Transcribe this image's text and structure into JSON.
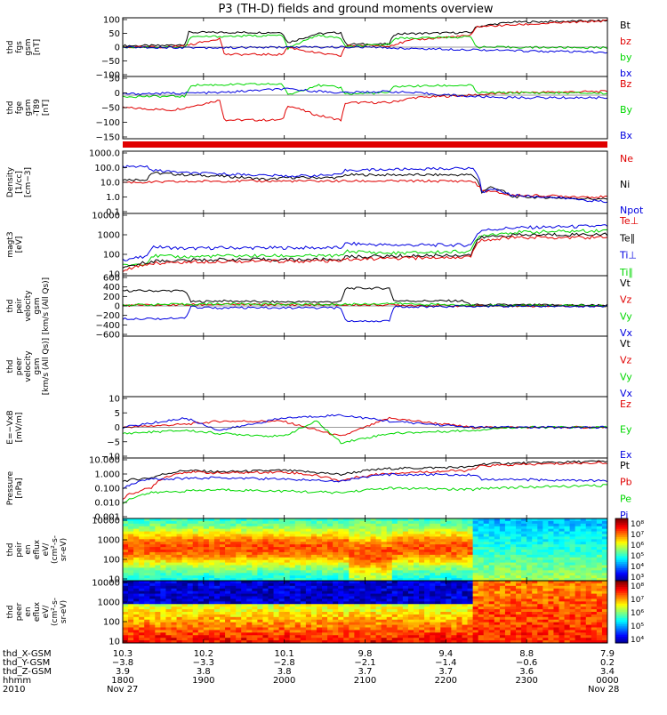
{
  "title": "P3 (TH-D) fields and ground moments overview",
  "colors": {
    "black": "#000000",
    "red": "#e00000",
    "green": "#00d800",
    "blue": "#0000e0",
    "frame": "#000000"
  },
  "chart_data": [
    {
      "type": "line",
      "ylabel": [
        "thd",
        "fgs",
        "gsm",
        "[nT]"
      ],
      "yticks": [
        "100",
        "50",
        "0",
        "−50",
        "−100"
      ],
      "ylim": [
        -100,
        100
      ],
      "legend": [
        {
          "name": "Bt",
          "color": "#000000"
        },
        {
          "name": "bz",
          "color": "#e00000"
        },
        {
          "name": "by",
          "color": "#00d800"
        },
        {
          "name": "bx",
          "color": "#0000e0"
        }
      ],
      "series": [
        {
          "name": "Bt",
          "color": "#000000",
          "x": [
            0,
            0.08,
            0.13,
            0.135,
            0.33,
            0.34,
            0.4,
            0.45,
            0.46,
            0.55,
            0.56,
            0.72,
            0.73,
            0.8,
            1.0
          ],
          "y": [
            5,
            5,
            10,
            50,
            50,
            15,
            45,
            50,
            10,
            10,
            45,
            50,
            70,
            85,
            90
          ]
        },
        {
          "name": "bz",
          "color": "#e00000",
          "x": [
            0,
            0.08,
            0.13,
            0.2,
            0.21,
            0.33,
            0.34,
            0.4,
            0.45,
            0.46,
            0.55,
            0.6,
            0.72,
            0.73,
            1.0
          ],
          "y": [
            0,
            0,
            5,
            30,
            -25,
            -25,
            0,
            -20,
            -30,
            5,
            5,
            25,
            40,
            70,
            90
          ]
        },
        {
          "name": "by",
          "color": "#00d800",
          "x": [
            0,
            0.13,
            0.14,
            0.33,
            0.34,
            0.4,
            0.45,
            0.46,
            0.55,
            0.56,
            0.72,
            0.73,
            1.0
          ],
          "y": [
            0,
            0,
            35,
            40,
            -5,
            40,
            30,
            0,
            10,
            30,
            35,
            0,
            -2
          ]
        },
        {
          "name": "bx",
          "color": "#0000e0",
          "x": [
            0,
            0.2,
            0.35,
            0.5,
            0.6,
            0.72,
            0.8,
            1.0
          ],
          "y": [
            0,
            -2,
            0,
            0,
            -5,
            -8,
            -12,
            -18
          ]
        }
      ]
    },
    {
      "type": "line",
      "ylabel": [
        "thd",
        "fge",
        "gsm",
        "-T89",
        "[nT]"
      ],
      "yticks": [
        "50",
        "0",
        "−50",
        "−100",
        "−150"
      ],
      "ylim": [
        -175,
        75
      ],
      "legend": [
        {
          "name": "Bz",
          "color": "#e00000"
        },
        {
          "name": "By",
          "color": "#00d800"
        },
        {
          "name": "Bx",
          "color": "#0000e0"
        }
      ],
      "series": [
        {
          "name": "Bz",
          "color": "#e00000",
          "x": [
            0,
            0.1,
            0.13,
            0.2,
            0.21,
            0.33,
            0.34,
            0.4,
            0.45,
            0.46,
            0.55,
            0.6,
            0.72,
            0.8,
            1.0
          ],
          "y": [
            -50,
            -60,
            -50,
            -20,
            -100,
            -100,
            -40,
            -80,
            -100,
            -30,
            -30,
            -10,
            0,
            10,
            15
          ]
        },
        {
          "name": "By",
          "color": "#00d800",
          "x": [
            0,
            0.13,
            0.14,
            0.33,
            0.34,
            0.4,
            0.45,
            0.46,
            0.55,
            0.56,
            0.72,
            0.73,
            1.0
          ],
          "y": [
            -5,
            -5,
            40,
            45,
            0,
            40,
            30,
            5,
            10,
            35,
            40,
            10,
            8
          ]
        },
        {
          "name": "Bx",
          "color": "#0000e0",
          "x": [
            0,
            0.2,
            0.33,
            0.45,
            0.55,
            0.72,
            0.8,
            1.0
          ],
          "y": [
            5,
            10,
            25,
            10,
            15,
            -5,
            -10,
            -10
          ]
        }
      ]
    },
    {
      "type": "line",
      "ylabel": [
        "Density",
        "[1/cc]",
        "[cm−3]"
      ],
      "yscale": "log",
      "yticks": [
        "1000.0",
        "100.0",
        "10.0",
        "1.0",
        "0.1"
      ],
      "ylim": [
        0.1,
        1000
      ],
      "legend": [
        {
          "name": "Ne",
          "color": "#e00000"
        },
        {
          "name": "Ni",
          "color": "#000000"
        },
        {
          "name": "Npot",
          "color": "#0000e0"
        }
      ],
      "series": [
        {
          "name": "Ni",
          "color": "#000000",
          "x": [
            0,
            0.05,
            0.06,
            0.13,
            0.2,
            0.3,
            0.34,
            0.45,
            0.46,
            0.72,
            0.74,
            0.76,
            0.8,
            1.0
          ],
          "y": [
            15,
            15,
            40,
            30,
            25,
            15,
            20,
            20,
            30,
            30,
            2,
            5,
            1.2,
            0.8
          ]
        },
        {
          "name": "Ne",
          "color": "#e00000",
          "x": [
            0,
            0.05,
            0.2,
            0.45,
            0.72,
            0.74,
            0.8,
            1.0
          ],
          "y": [
            10,
            10,
            12,
            12,
            12,
            3,
            1.5,
            1.1
          ]
        },
        {
          "name": "Npot",
          "color": "#0000e0",
          "x": [
            0,
            0.05,
            0.06,
            0.13,
            0.2,
            0.34,
            0.45,
            0.46,
            0.72,
            0.74,
            0.76,
            0.8,
            1.0
          ],
          "y": [
            100,
            100,
            60,
            40,
            35,
            25,
            30,
            60,
            80,
            2,
            4,
            1.5,
            0.5
          ]
        }
      ]
    },
    {
      "type": "line",
      "ylabel": [
        "magt3",
        "[eV]"
      ],
      "yscale": "log",
      "yticks": [
        "10000",
        "1000",
        "100",
        "10"
      ],
      "ylim": [
        10,
        10000
      ],
      "legend": [
        {
          "name": "Te⊥",
          "color": "#e00000"
        },
        {
          "name": "Te∥",
          "color": "#000000"
        },
        {
          "name": "Ti⊥",
          "color": "#0000e0"
        },
        {
          "name": "Ti∥",
          "color": "#00d800"
        }
      ],
      "series": [
        {
          "name": "Ti⊥",
          "color": "#0000e0",
          "x": [
            0,
            0.05,
            0.06,
            0.13,
            0.2,
            0.45,
            0.46,
            0.55,
            0.72,
            0.74,
            0.8,
            1.0
          ],
          "y": [
            60,
            80,
            250,
            200,
            220,
            220,
            350,
            300,
            300,
            1500,
            2000,
            2500
          ]
        },
        {
          "name": "Ti∥",
          "color": "#00d800",
          "x": [
            0,
            0.05,
            0.06,
            0.13,
            0.2,
            0.45,
            0.46,
            0.55,
            0.72,
            0.74,
            0.8,
            1.0
          ],
          "y": [
            30,
            40,
            90,
            80,
            90,
            90,
            150,
            120,
            150,
            900,
            1200,
            1500
          ]
        },
        {
          "name": "Te∥",
          "color": "#000000",
          "x": [
            0,
            0.06,
            0.2,
            0.45,
            0.46,
            0.72,
            0.74,
            0.8,
            1.0
          ],
          "y": [
            20,
            50,
            60,
            60,
            80,
            100,
            700,
            900,
            1000
          ]
        },
        {
          "name": "Te⊥",
          "color": "#e00000",
          "x": [
            0,
            0.06,
            0.2,
            0.45,
            0.46,
            0.72,
            0.74,
            0.8,
            1.0
          ],
          "y": [
            15,
            40,
            50,
            50,
            60,
            80,
            500,
            700,
            700
          ]
        }
      ]
    },
    {
      "type": "line",
      "ylabel": [
        "thd",
        "peir",
        "velocity",
        "gsm",
        "[km/s (All Qs)]"
      ],
      "yticks": [
        "600",
        "400",
        "200",
        "0",
        "−200",
        "−400",
        "−600"
      ],
      "ylim": [
        -600,
        600
      ],
      "legend": [
        {
          "name": "Vt",
          "color": "#000000"
        },
        {
          "name": "Vz",
          "color": "#e00000"
        },
        {
          "name": "Vy",
          "color": "#00d800"
        },
        {
          "name": "Vx",
          "color": "#0000e0"
        }
      ],
      "series": [
        {
          "name": "Vt",
          "color": "#000000",
          "x": [
            0,
            0.13,
            0.14,
            0.2,
            0.3,
            0.45,
            0.46,
            0.55,
            0.56,
            0.7,
            0.72,
            1.0
          ],
          "y": [
            300,
            300,
            80,
            100,
            80,
            80,
            350,
            350,
            100,
            100,
            20,
            15
          ]
        },
        {
          "name": "Vz",
          "color": "#e00000",
          "x": [
            0,
            0.2,
            0.45,
            0.55,
            0.72,
            1.0
          ],
          "y": [
            10,
            30,
            20,
            20,
            0,
            0
          ]
        },
        {
          "name": "Vy",
          "color": "#00d800",
          "x": [
            0,
            0.2,
            0.45,
            0.55,
            0.72,
            1.0
          ],
          "y": [
            20,
            40,
            30,
            50,
            10,
            5
          ]
        },
        {
          "name": "Vx",
          "color": "#0000e0",
          "x": [
            0,
            0.13,
            0.14,
            0.2,
            0.45,
            0.46,
            0.55,
            0.56,
            0.72,
            1.0
          ],
          "y": [
            -250,
            -250,
            -20,
            -40,
            -40,
            -300,
            -300,
            -20,
            -5,
            -5
          ]
        }
      ]
    },
    {
      "type": "line",
      "ylabel": [
        "thd",
        "peer",
        "velocity",
        "gsm",
        "[km/s (All Qs)]"
      ],
      "yticks": [],
      "legend": [
        {
          "name": "Vt",
          "color": "#000000"
        },
        {
          "name": "Vz",
          "color": "#e00000"
        },
        {
          "name": "Vy",
          "color": "#00d800"
        },
        {
          "name": "Vx",
          "color": "#0000e0"
        }
      ],
      "series": []
    },
    {
      "type": "line",
      "ylabel": [
        "E=−VxB",
        "[mV/m]"
      ],
      "yticks": [
        "10",
        "5",
        "0",
        "−5",
        "−10"
      ],
      "ylim": [
        -10,
        10
      ],
      "legend": [
        {
          "name": "Ez",
          "color": "#e00000"
        },
        {
          "name": "Ey",
          "color": "#00d800"
        },
        {
          "name": "Ex",
          "color": "#0000e0"
        }
      ],
      "series": [
        {
          "name": "Ez",
          "color": "#e00000",
          "x": [
            0,
            0.13,
            0.2,
            0.33,
            0.45,
            0.55,
            0.72,
            0.8,
            1.0
          ],
          "y": [
            0,
            1,
            2,
            2,
            -3,
            3,
            0,
            0,
            0
          ]
        },
        {
          "name": "Ey",
          "color": "#00d800",
          "x": [
            0,
            0.13,
            0.2,
            0.33,
            0.4,
            0.45,
            0.55,
            0.72,
            0.8,
            1.0
          ],
          "y": [
            -2,
            -1,
            -2,
            -3,
            2,
            -5,
            -2,
            -1,
            0,
            0
          ]
        },
        {
          "name": "Ex",
          "color": "#0000e0",
          "x": [
            0,
            0.13,
            0.2,
            0.33,
            0.45,
            0.55,
            0.72,
            0.8,
            1.0
          ],
          "y": [
            0,
            3,
            -1,
            3,
            4,
            2,
            0,
            0,
            0
          ]
        }
      ]
    },
    {
      "type": "line",
      "ylabel": [
        "Pressure",
        "[nPa]"
      ],
      "yscale": "log",
      "yticks": [
        "10.000",
        "1.000",
        "0.100",
        "0.010",
        "0.001"
      ],
      "ylim": [
        0.001,
        10
      ],
      "legend": [
        {
          "name": "Pt",
          "color": "#000000"
        },
        {
          "name": "Pb",
          "color": "#e00000"
        },
        {
          "name": "Pe",
          "color": "#00d800"
        },
        {
          "name": "Pi",
          "color": "#0000e0"
        }
      ],
      "series": [
        {
          "name": "Pt",
          "color": "#000000",
          "x": [
            0,
            0.06,
            0.13,
            0.2,
            0.33,
            0.45,
            0.55,
            0.72,
            0.74,
            1.0
          ],
          "y": [
            0.3,
            0.5,
            1.5,
            1.2,
            1.5,
            0.8,
            2,
            2.5,
            4,
            6
          ]
        },
        {
          "name": "Pb",
          "color": "#e00000",
          "x": [
            0,
            0.06,
            0.13,
            0.2,
            0.33,
            0.45,
            0.55,
            0.72,
            0.74,
            1.0
          ],
          "y": [
            0.02,
            0.1,
            1.2,
            1,
            1.2,
            0.3,
            1,
            1.5,
            3,
            5
          ]
        },
        {
          "name": "Pe",
          "color": "#00d800",
          "x": [
            0,
            0.06,
            0.2,
            0.45,
            0.55,
            0.72,
            0.74,
            1.0
          ],
          "y": [
            0.01,
            0.05,
            0.08,
            0.05,
            0.1,
            0.08,
            0.1,
            0.15
          ]
        },
        {
          "name": "Pi",
          "color": "#0000e0",
          "x": [
            0,
            0.06,
            0.2,
            0.45,
            0.55,
            0.72,
            0.74,
            1.0
          ],
          "y": [
            0.1,
            0.4,
            0.5,
            0.3,
            0.8,
            0.8,
            0.4,
            0.3
          ]
        }
      ]
    },
    {
      "type": "heatmap",
      "ylabel": [
        "thd",
        "peir",
        "en",
        "eflux",
        "eV/",
        "(cm²-s-",
        "sr-eV)"
      ],
      "yticks": [
        "10000",
        "1000",
        "100",
        "10"
      ],
      "ylim": [
        10,
        10000
      ],
      "colorbar_ticks": [
        "10⁸",
        "10⁷",
        "10⁶",
        "10⁵",
        "10⁴",
        "10³"
      ]
    },
    {
      "type": "heatmap",
      "ylabel": [
        "thd",
        "peer",
        "en",
        "eflux",
        "eV/",
        "(cm²-s-",
        "sr-eV)"
      ],
      "yticks": [
        "10000",
        "1000",
        "100",
        "10"
      ],
      "ylim": [
        10,
        10000
      ],
      "colorbar_ticks": [
        "10⁸",
        "10⁷",
        "10⁶",
        "10⁵",
        "10⁴"
      ]
    }
  ],
  "xaxis": {
    "row_labels": [
      "thd_X-GSM",
      "thd_Y-GSM",
      "thd_Z-GSM",
      "hhmm",
      "2010"
    ],
    "ticks": [
      {
        "x": "10.3",
        "y": "−3.8",
        "z": "3.9",
        "time": "1800",
        "date": "Nov 27"
      },
      {
        "x": "10.2",
        "y": "−3.3",
        "z": "3.8",
        "time": "1900",
        "date": ""
      },
      {
        "x": "10.1",
        "y": "−2.8",
        "z": "3.8",
        "time": "2000",
        "date": ""
      },
      {
        "x": "9.8",
        "y": "−2.1",
        "z": "3.7",
        "time": "2100",
        "date": ""
      },
      {
        "x": "9.4",
        "y": "−1.4",
        "z": "3.7",
        "time": "2200",
        "date": ""
      },
      {
        "x": "8.8",
        "y": "−0.6",
        "z": "3.6",
        "time": "2300",
        "date": ""
      },
      {
        "x": "7.9",
        "y": "0.2",
        "z": "3.4",
        "time": "0000",
        "date": "Nov 28"
      }
    ]
  }
}
